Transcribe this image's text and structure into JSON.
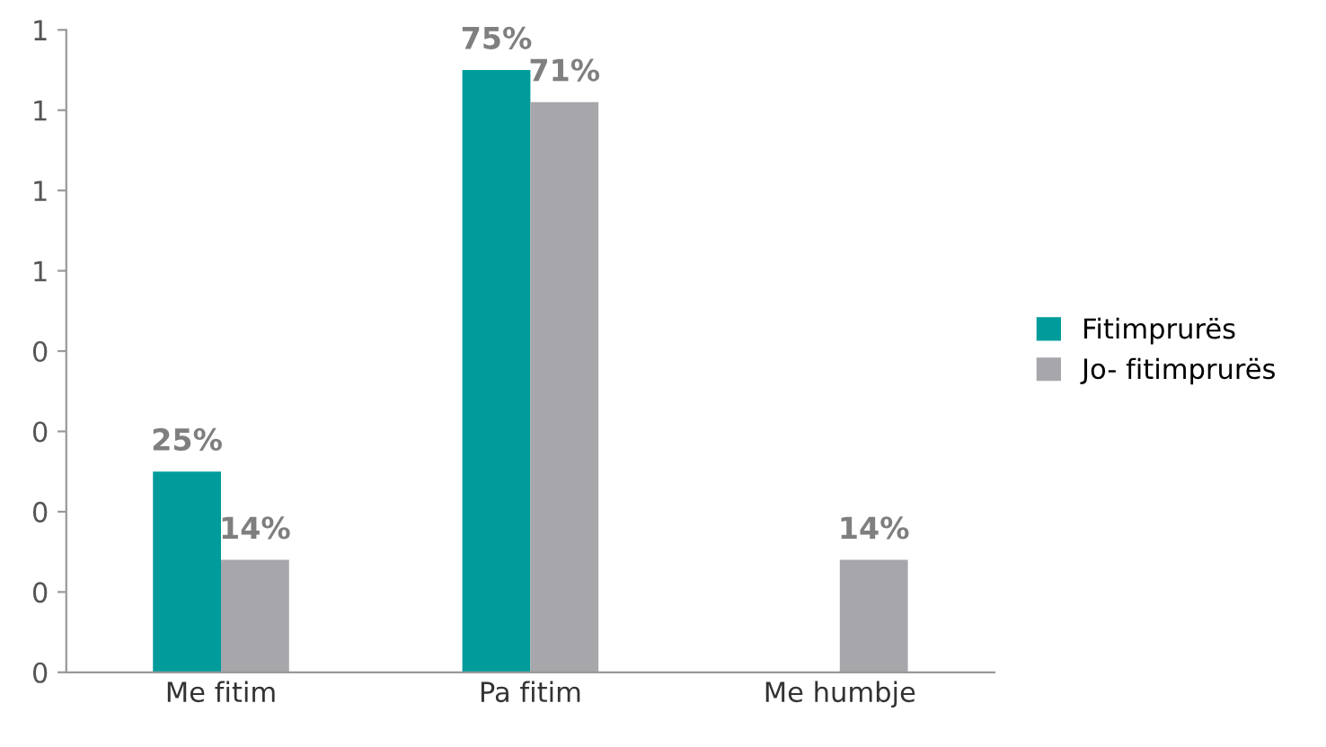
{
  "chart_data": {
    "type": "bar",
    "categories": [
      "Me fitim",
      "Pa fitim",
      "Me humbje"
    ],
    "series": [
      {
        "name": "Fitimprurës",
        "color": "#009c9c",
        "values": [
          0.25,
          0.75,
          null
        ],
        "value_labels": [
          "25%",
          "75%",
          null
        ]
      },
      {
        "name": "Jo- fitimprurës",
        "color": "#a7a7ab",
        "values": [
          0.14,
          0.71,
          0.14
        ],
        "value_labels": [
          "14%",
          "71%",
          "14%"
        ]
      }
    ],
    "ylim": [
      0,
      0.8
    ],
    "yticks": [
      {
        "value": 0,
        "label": "0"
      },
      {
        "value": 0.1,
        "label": "0"
      },
      {
        "value": 0.2,
        "label": "0"
      },
      {
        "value": 0.3,
        "label": "0"
      },
      {
        "value": 0.4,
        "label": "0"
      },
      {
        "value": 0.5,
        "label": "1"
      },
      {
        "value": 0.6,
        "label": "1"
      },
      {
        "value": 0.7,
        "label": "1"
      },
      {
        "value": 0.8,
        "label": "1"
      }
    ],
    "grid": false,
    "legend": "right"
  }
}
